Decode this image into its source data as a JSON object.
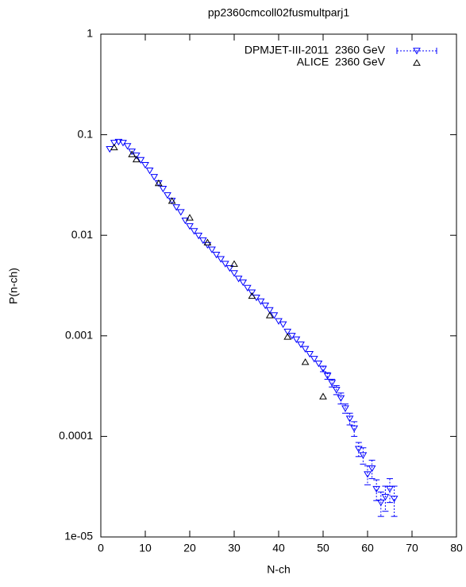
{
  "chart_data": {
    "type": "scatter",
    "title": "pp2360cmcoll02fusmultparj1",
    "x_label": "N-ch",
    "y_label": "P(n-ch)",
    "log_y": true,
    "legend": "top-right",
    "xlim": [
      0,
      80
    ],
    "xticks": [
      0,
      10,
      20,
      30,
      40,
      50,
      60,
      70,
      80
    ],
    "ylim": [
      1e-05,
      1
    ],
    "yticks": [
      1,
      0.1,
      0.01,
      0.001,
      0.0001,
      {
        "value": 1e-05,
        "label": "1e-05"
      }
    ],
    "series": [
      {
        "name": "DPMJET-III-2011  2360 GeV",
        "color": "#0000ff",
        "marker": "triangle-down",
        "x": [
          2,
          3,
          4,
          5,
          6,
          7,
          8,
          9,
          10,
          11,
          12,
          13,
          14,
          15,
          16,
          17,
          18,
          19,
          20,
          21,
          22,
          23,
          24,
          25,
          26,
          27,
          28,
          29,
          30,
          31,
          32,
          33,
          34,
          35,
          36,
          37,
          38,
          39,
          40,
          41,
          42,
          43,
          44,
          45,
          46,
          47,
          48,
          49,
          50,
          51,
          52,
          53,
          54,
          55,
          56,
          57,
          58,
          59,
          60,
          61,
          62,
          63,
          64,
          65,
          66
        ],
        "values": [
          0.072,
          0.083,
          0.085,
          0.083,
          0.077,
          0.068,
          0.062,
          0.056,
          0.05,
          0.044,
          0.038,
          0.033,
          0.029,
          0.025,
          0.022,
          0.019,
          0.017,
          0.014,
          0.0123,
          0.011,
          0.0099,
          0.0089,
          0.008,
          0.0072,
          0.0064,
          0.0058,
          0.0052,
          0.0047,
          0.0042,
          0.0037,
          0.0034,
          0.003,
          0.0027,
          0.0024,
          0.0022,
          0.002,
          0.0018,
          0.0016,
          0.0014,
          0.0013,
          0.0011,
          0.001,
          0.00092,
          0.00082,
          0.00074,
          0.00066,
          0.00059,
          0.00053,
          0.00047,
          0.0004,
          0.00034,
          0.00029,
          0.00024,
          0.00019,
          0.00015,
          0.00012,
          7.5e-05,
          6.5e-05,
          4.2e-05,
          4.8e-05,
          3e-05,
          2.2e-05,
          2.5e-05,
          3e-05,
          2.4e-05
        ],
        "errors": [
          0,
          0,
          0,
          0,
          0,
          0,
          0,
          0,
          0,
          0,
          0,
          0,
          0,
          0,
          0,
          0,
          0,
          0,
          0,
          0,
          0,
          0,
          0,
          0,
          0,
          0,
          0,
          0,
          0,
          0,
          0,
          0,
          0,
          0,
          0,
          0,
          0,
          0,
          0,
          0,
          0,
          0,
          0,
          0,
          0,
          0,
          0,
          0,
          3e-05,
          3e-05,
          3e-05,
          3e-05,
          3e-05,
          2e-05,
          2e-05,
          2e-05,
          1.2e-05,
          1.2e-05,
          9e-06,
          1e-05,
          7e-06,
          6e-06,
          7e-06,
          8e-06,
          8e-06
        ]
      },
      {
        "name": "ALICE  2360 GeV",
        "color": "#000000",
        "marker": "triangle-up",
        "x": [
          3,
          7,
          8,
          13,
          16,
          20,
          24,
          30,
          34,
          38,
          42,
          46,
          50
        ],
        "values": [
          0.075,
          0.064,
          0.057,
          0.033,
          0.022,
          0.015,
          0.0085,
          0.0052,
          0.0025,
          0.0016,
          0.00098,
          0.00055,
          0.00025
        ]
      }
    ]
  }
}
